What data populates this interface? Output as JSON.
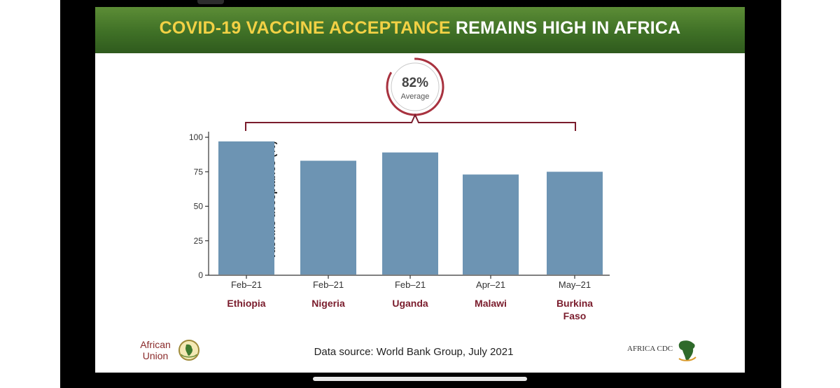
{
  "slide": {
    "title_part1": "COVID-19 VACCINE ACCEPTANCE",
    "title_part2": "REMAINS HIGH IN AFRICA",
    "average_value": "82%",
    "average_label": "Average",
    "source": "Data source: World Bank Group, July 2021",
    "logos": {
      "left_line1": "African",
      "left_line2": "Union",
      "right": "AFRICA CDC"
    }
  },
  "colors": {
    "bar": "#6d94b3",
    "accent": "#7a1c2c",
    "banner": "#3f7026",
    "title_yellow": "#f2d145"
  },
  "chart_data": {
    "type": "bar",
    "categories": [
      "Ethiopia",
      "Nigeria",
      "Uganda",
      "Malawi",
      "Burkina Faso"
    ],
    "category_lines": [
      [
        "Ethiopia"
      ],
      [
        "Nigeria"
      ],
      [
        "Uganda"
      ],
      [
        "Malawi"
      ],
      [
        "Burkina",
        "Faso"
      ]
    ],
    "dates": [
      "Feb–21",
      "Feb–21",
      "Feb–21",
      "Apr–21",
      "May–21"
    ],
    "values": [
      97,
      83,
      89,
      73,
      75
    ],
    "ylabel": "Vaccine acceptance (%)",
    "xlabel": "",
    "ylim": [
      0,
      100
    ],
    "yticks": [
      0,
      25,
      50,
      75,
      100
    ],
    "grid": false,
    "annotation": "82% Average"
  }
}
